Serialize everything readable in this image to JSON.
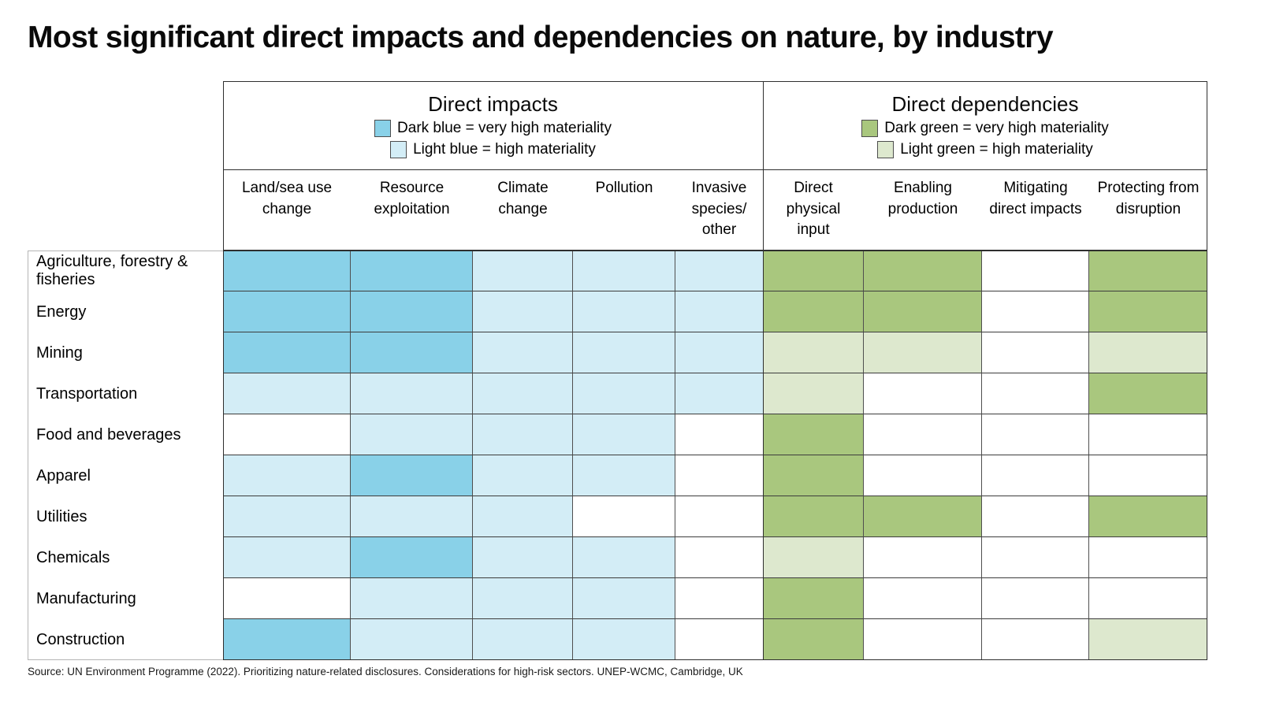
{
  "colors": {
    "dark_blue": "#89D1E8",
    "light_blue": "#D3EDF6",
    "dark_green": "#A9C77E",
    "light_green": "#DDE8CE",
    "none": "#FFFFFF",
    "frame_border": "#2E2E2E"
  },
  "source": "Source: UN Environment Programme (2022). Prioritizing nature-related disclosures. Considerations for high-risk sectors. UNEP-WCMC, Cambridge, UK",
  "chart_data": {
    "type": "heatmap",
    "title": "Most significant direct impacts and dependencies on nature, by industry",
    "value_scale": {
      "very_high": "very high materiality",
      "high": "high materiality",
      "none": "blank / not significant"
    },
    "legend_position": "top, inside each column group header",
    "grid": true,
    "column_groups": [
      {
        "label": "Direct impacts",
        "palette": {
          "very_high": "dark_blue",
          "high": "light_blue"
        },
        "legend": [
          {
            "swatch": "dark_blue",
            "label": "Dark blue = very high materiality"
          },
          {
            "swatch": "light_blue",
            "label": "Light blue = high materiality"
          }
        ],
        "columns": [
          "Land/sea use change",
          "Resource exploitation",
          "Climate change",
          "Pollution",
          "Invasive species/ other"
        ]
      },
      {
        "label": "Direct dependencies",
        "palette": {
          "very_high": "dark_green",
          "high": "light_green"
        },
        "legend": [
          {
            "swatch": "dark_green",
            "label": "Dark green = very high materiality"
          },
          {
            "swatch": "light_green",
            "label": "Light green = high materiality"
          }
        ],
        "columns": [
          "Direct physical input",
          "Enabling production",
          "Mitigating direct impacts",
          "Protecting from disruption"
        ]
      }
    ],
    "rows": [
      {
        "label": "Agriculture, forestry & fisheries",
        "values": [
          "very_high",
          "very_high",
          "high",
          "high",
          "high",
          "very_high",
          "very_high",
          null,
          "very_high"
        ]
      },
      {
        "label": "Energy",
        "values": [
          "very_high",
          "very_high",
          "high",
          "high",
          "high",
          "very_high",
          "very_high",
          null,
          "very_high"
        ]
      },
      {
        "label": "Mining",
        "values": [
          "very_high",
          "very_high",
          "high",
          "high",
          "high",
          "high",
          "high",
          null,
          "high"
        ]
      },
      {
        "label": "Transportation",
        "values": [
          "high",
          "high",
          "high",
          "high",
          "high",
          "high",
          null,
          null,
          "very_high"
        ]
      },
      {
        "label": "Food and beverages",
        "values": [
          null,
          "high",
          "high",
          "high",
          null,
          "very_high",
          null,
          null,
          null
        ]
      },
      {
        "label": "Apparel",
        "values": [
          "high",
          "very_high",
          "high",
          "high",
          null,
          "very_high",
          null,
          null,
          null
        ]
      },
      {
        "label": "Utilities",
        "values": [
          "high",
          "high",
          "high",
          null,
          null,
          "very_high",
          "very_high",
          null,
          "very_high"
        ]
      },
      {
        "label": "Chemicals",
        "values": [
          "high",
          "very_high",
          "high",
          "high",
          null,
          "high",
          null,
          null,
          null
        ]
      },
      {
        "label": "Manufacturing",
        "values": [
          null,
          "high",
          "high",
          "high",
          null,
          "very_high",
          null,
          null,
          null
        ]
      },
      {
        "label": "Construction",
        "values": [
          "very_high",
          "high",
          "high",
          "high",
          null,
          "very_high",
          null,
          null,
          "high"
        ]
      }
    ]
  }
}
